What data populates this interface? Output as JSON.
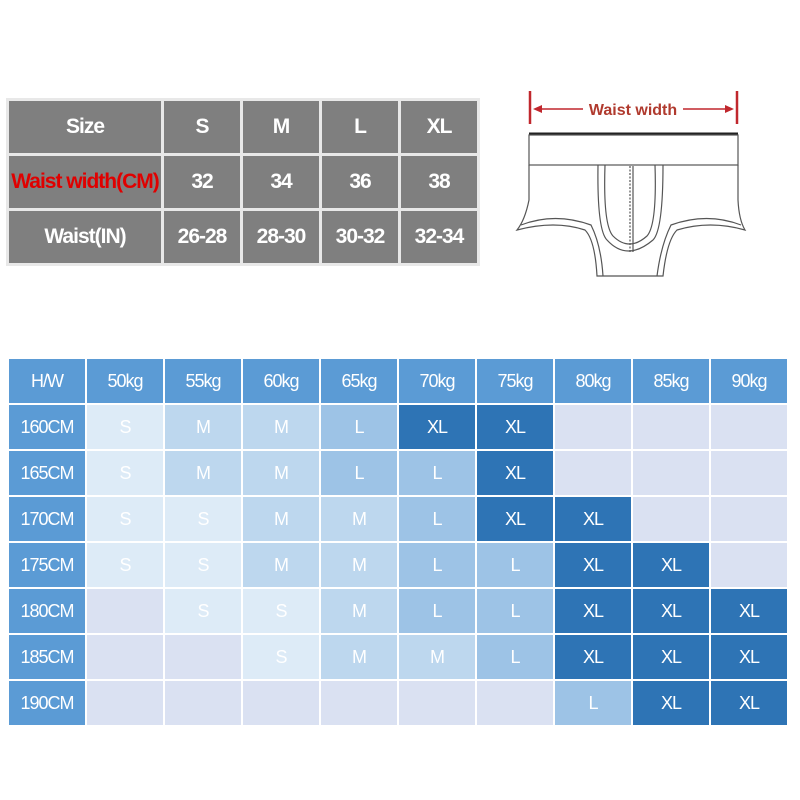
{
  "size_table": {
    "header": [
      "Size",
      "S",
      "M",
      "L",
      "XL"
    ],
    "rows": [
      {
        "label": "Waist width(CM)",
        "label_color": "#e00000",
        "values": [
          "32",
          "34",
          "36",
          "38"
        ]
      },
      {
        "label": "Waist(IN)",
        "values": [
          "26-28",
          "28-30",
          "30-32",
          "32-34"
        ]
      }
    ]
  },
  "diagram": {
    "label": "Waist width",
    "label_color": "#b03a2e"
  },
  "fit_table": {
    "corner": "H/W",
    "weights": [
      "50kg",
      "55kg",
      "60kg",
      "65kg",
      "70kg",
      "75kg",
      "80kg",
      "85kg",
      "90kg"
    ],
    "rows": [
      {
        "height": "160CM",
        "sizes": [
          "S",
          "M",
          "M",
          "L",
          "XL",
          "XL",
          "",
          "",
          ""
        ]
      },
      {
        "height": "165CM",
        "sizes": [
          "S",
          "M",
          "M",
          "L",
          "L",
          "XL",
          "",
          "",
          ""
        ]
      },
      {
        "height": "170CM",
        "sizes": [
          "S",
          "S",
          "M",
          "M",
          "L",
          "XL",
          "XL",
          "",
          ""
        ]
      },
      {
        "height": "175CM",
        "sizes": [
          "S",
          "S",
          "M",
          "M",
          "L",
          "L",
          "XL",
          "XL",
          ""
        ]
      },
      {
        "height": "180CM",
        "sizes": [
          "",
          "S",
          "S",
          "M",
          "L",
          "L",
          "XL",
          "XL",
          "XL"
        ]
      },
      {
        "height": "185CM",
        "sizes": [
          "",
          "",
          "S",
          "M",
          "M",
          "L",
          "XL",
          "XL",
          "XL"
        ]
      },
      {
        "height": "190CM",
        "sizes": [
          "",
          "",
          "",
          "",
          "",
          "",
          "L",
          "XL",
          "XL"
        ]
      }
    ],
    "colors": {
      "header": "#5b9bd5",
      "XL": "#2e74b5",
      "L": "#9dc3e6",
      "M": "#bdd7ee",
      "S": "#ddebf7",
      "empty": "#dae1f2"
    }
  }
}
